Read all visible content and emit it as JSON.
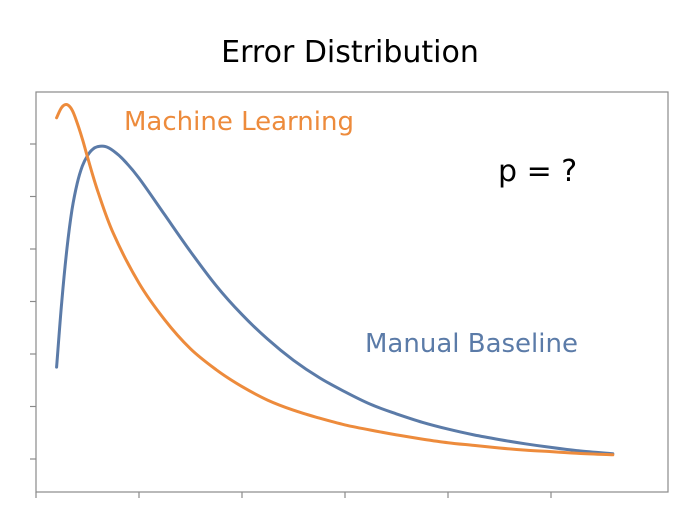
{
  "chart_data": {
    "type": "line",
    "title": "Error Distribution",
    "xlabel": "",
    "ylabel": "",
    "xlim": [
      0,
      10
    ],
    "ylim": [
      0,
      6.8
    ],
    "grid": false,
    "legend": "none",
    "x_ticks": [
      0,
      2,
      4,
      6,
      8,
      10
    ],
    "y_ticks": [
      0,
      1,
      2,
      3,
      4,
      5,
      6
    ],
    "series": [
      {
        "name": "Machine Learning",
        "color": "#ED8B3C",
        "x": [
          0.4,
          0.5,
          0.6,
          0.7,
          0.8,
          0.9,
          1.0,
          1.2,
          1.5,
          2.0,
          2.5,
          3.0,
          3.5,
          4.0,
          4.5,
          5.0,
          5.5,
          6.0,
          6.5,
          7.0,
          7.5,
          8.0,
          8.5,
          9.0,
          9.5,
          10.0,
          10.5,
          11.2
        ],
        "y": [
          6.5,
          6.7,
          6.75,
          6.65,
          6.4,
          6.1,
          5.75,
          5.1,
          4.3,
          3.35,
          2.65,
          2.1,
          1.7,
          1.38,
          1.12,
          0.93,
          0.78,
          0.65,
          0.55,
          0.46,
          0.38,
          0.31,
          0.26,
          0.21,
          0.17,
          0.14,
          0.11,
          0.08
        ]
      },
      {
        "name": "Manual Baseline",
        "color": "#5B7BA8",
        "x": [
          0.4,
          0.5,
          0.6,
          0.7,
          0.8,
          0.9,
          1.0,
          1.1,
          1.2,
          1.35,
          1.5,
          1.7,
          2.0,
          2.5,
          3.0,
          3.5,
          4.0,
          4.5,
          5.0,
          5.5,
          6.0,
          6.5,
          7.0,
          7.5,
          8.0,
          8.5,
          9.0,
          9.5,
          10.0,
          10.5,
          11.2
        ],
        "y": [
          1.75,
          3.0,
          4.0,
          4.75,
          5.25,
          5.58,
          5.78,
          5.9,
          5.95,
          5.95,
          5.87,
          5.7,
          5.35,
          4.65,
          3.95,
          3.3,
          2.75,
          2.28,
          1.88,
          1.55,
          1.28,
          1.04,
          0.86,
          0.7,
          0.57,
          0.46,
          0.37,
          0.29,
          0.22,
          0.16,
          0.1
        ]
      }
    ],
    "annotations": [
      {
        "text": "p = ?",
        "x": 9.0,
        "y": 5.6
      }
    ]
  }
}
